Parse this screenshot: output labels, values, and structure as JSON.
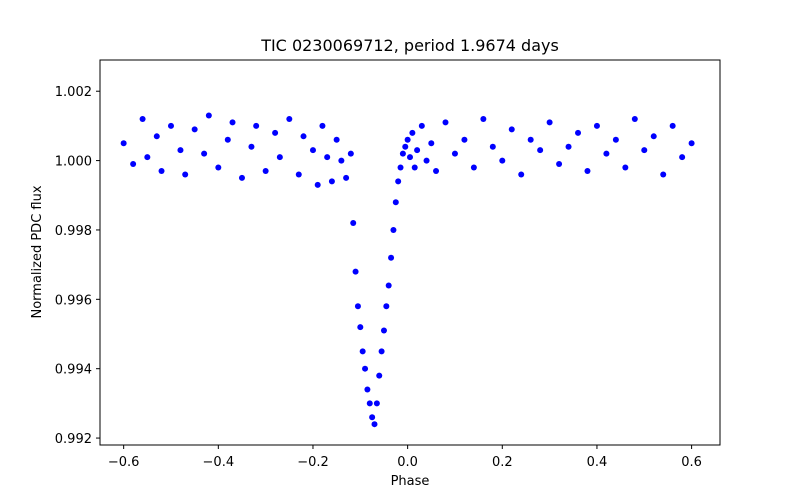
{
  "chart_data": {
    "type": "scatter",
    "title": "TIC 0230069712, period 1.9674 days",
    "xlabel": "Phase",
    "ylabel": "Normalized PDC flux",
    "xlim": [
      -0.65,
      0.66
    ],
    "ylim": [
      0.9918,
      1.0029
    ],
    "xticks": [
      -0.6,
      -0.4,
      -0.2,
      0.0,
      0.2,
      0.4,
      0.6
    ],
    "xtick_labels": [
      "−0.6",
      "−0.4",
      "−0.2",
      "0.0",
      "0.2",
      "0.4",
      "0.6"
    ],
    "yticks": [
      0.992,
      0.994,
      0.996,
      0.998,
      1.0,
      1.002
    ],
    "ytick_labels": [
      "0.992",
      "0.994",
      "0.996",
      "0.998",
      "1.000",
      "1.002"
    ],
    "grid": false,
    "legend": "none",
    "marker_color": "#0000ff",
    "series": [
      {
        "x": [
          -0.6,
          -0.58,
          -0.56,
          -0.55,
          -0.53,
          -0.52,
          -0.5,
          -0.48,
          -0.47,
          -0.45,
          -0.43,
          -0.42,
          -0.4,
          -0.38,
          -0.37,
          -0.35,
          -0.33,
          -0.32,
          -0.3,
          -0.28,
          -0.27,
          -0.25,
          -0.23,
          -0.22,
          -0.2,
          -0.19,
          -0.18,
          -0.17,
          -0.16,
          -0.15,
          -0.14,
          -0.13,
          -0.12,
          -0.115,
          -0.11,
          -0.105,
          -0.1,
          -0.095,
          -0.09,
          -0.085,
          -0.08,
          -0.075,
          -0.07,
          -0.065,
          -0.06,
          -0.055,
          -0.05,
          -0.045,
          -0.04,
          -0.035,
          -0.03,
          -0.025,
          -0.02,
          -0.015,
          -0.01,
          -0.005,
          0.0,
          0.005,
          0.01,
          0.015,
          0.02,
          0.03,
          0.04,
          0.05,
          0.06,
          0.08,
          0.1,
          0.12,
          0.14,
          0.16,
          0.18,
          0.2,
          0.22,
          0.24,
          0.26,
          0.28,
          0.3,
          0.32,
          0.34,
          0.36,
          0.38,
          0.4,
          0.42,
          0.44,
          0.46,
          0.48,
          0.5,
          0.52,
          0.54,
          0.56,
          0.58,
          0.6
        ],
        "y": [
          1.0005,
          0.9999,
          1.0012,
          1.0001,
          1.0007,
          0.9997,
          1.001,
          1.0003,
          0.9996,
          1.0009,
          1.0002,
          1.0013,
          0.9998,
          1.0006,
          1.0011,
          0.9995,
          1.0004,
          1.001,
          0.9997,
          1.0008,
          1.0001,
          1.0012,
          0.9996,
          1.0007,
          1.0003,
          0.9993,
          1.001,
          1.0001,
          0.9994,
          1.0006,
          1.0,
          0.9995,
          1.0002,
          0.9982,
          0.9968,
          0.9958,
          0.9952,
          0.9945,
          0.994,
          0.9934,
          0.993,
          0.9926,
          0.9924,
          0.993,
          0.9938,
          0.9945,
          0.9951,
          0.9958,
          0.9964,
          0.9972,
          0.998,
          0.9988,
          0.9994,
          0.9998,
          1.0002,
          1.0004,
          1.0006,
          1.0001,
          1.0008,
          0.9998,
          1.0003,
          1.001,
          1.0,
          1.0005,
          0.9997,
          1.0011,
          1.0002,
          1.0006,
          0.9998,
          1.0012,
          1.0004,
          1.0,
          1.0009,
          0.9996,
          1.0006,
          1.0003,
          1.0011,
          0.9999,
          1.0004,
          1.0008,
          0.9997,
          1.001,
          1.0002,
          1.0006,
          0.9998,
          1.0012,
          1.0003,
          1.0007,
          0.9996,
          1.001,
          1.0001,
          1.0005
        ]
      }
    ]
  }
}
